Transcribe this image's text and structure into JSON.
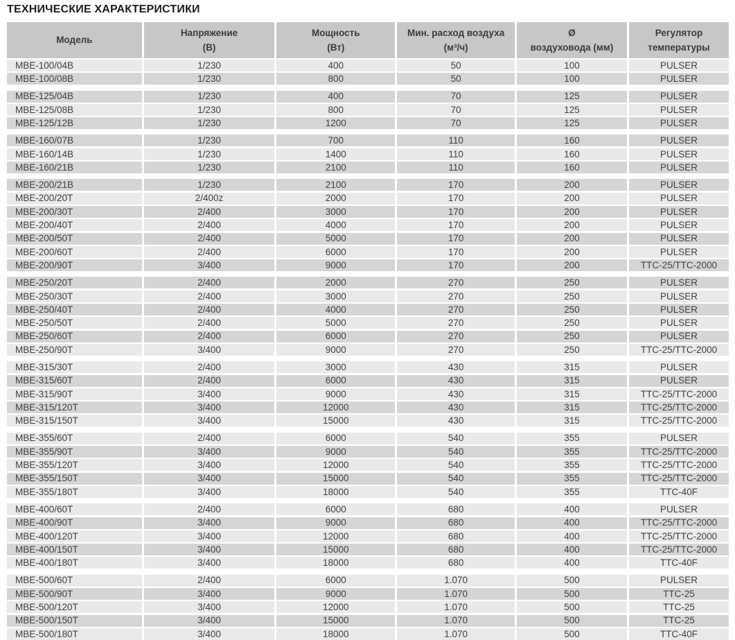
{
  "page_title": "ТЕХНИЧЕСКИЕ ХАРАКТЕРИСТИКИ",
  "colors": {
    "header_bg": "#c7c7c7",
    "row_light": "#e9e9e9",
    "row_dark": "#d5d5d5",
    "text": "#404040",
    "title_text": "#1d1d1b"
  },
  "table": {
    "columns": [
      {
        "id": "model",
        "label_line1": "Модель",
        "label_line2": ""
      },
      {
        "id": "voltage",
        "label_line1": "Напряжение",
        "label_line2": "(В)"
      },
      {
        "id": "power",
        "label_line1": "Мощность",
        "label_line2": "(Вт)"
      },
      {
        "id": "airflow",
        "label_line1": "Мин. расход воздуха",
        "label_line2": "(м³/ч)"
      },
      {
        "id": "duct-diameter",
        "label_line1": "Ø",
        "label_line2": "воздуховода (мм)"
      },
      {
        "id": "temp-regulator",
        "label_line1": "Регулятор",
        "label_line2": "температуры"
      }
    ],
    "groups": [
      {
        "series": "MBE-100",
        "rows": [
          [
            "MBE-100/04B",
            "1/230",
            "400",
            "50",
            "100",
            "PULSER"
          ],
          [
            "MBE-100/08B",
            "1/230",
            "800",
            "50",
            "100",
            "PULSER"
          ]
        ]
      },
      {
        "series": "MBE-125",
        "rows": [
          [
            "MBE-125/04B",
            "1/230",
            "400",
            "70",
            "125",
            "PULSER"
          ],
          [
            "MBE-125/08B",
            "1/230",
            "800",
            "70",
            "125",
            "PULSER"
          ],
          [
            "MBE-125/12B",
            "1/230",
            "1200",
            "70",
            "125",
            "PULSER"
          ]
        ]
      },
      {
        "series": "MBE-160",
        "rows": [
          [
            "MBE-160/07B",
            "1/230",
            "700",
            "110",
            "160",
            "PULSER"
          ],
          [
            "MBE-160/14B",
            "1/230",
            "1400",
            "110",
            "160",
            "PULSER"
          ],
          [
            "MBE-160/21B",
            "1/230",
            "2100",
            "110",
            "160",
            "PULSER"
          ]
        ]
      },
      {
        "series": "MBE-200",
        "rows": [
          [
            "MBE-200/21B",
            "1/230",
            "2100",
            "170",
            "200",
            "PULSER"
          ],
          [
            "MBE-200/20T",
            "2/400z",
            "2000",
            "170",
            "200",
            "PULSER"
          ],
          [
            "MBE-200/30T",
            "2/400",
            "3000",
            "170",
            "200",
            "PULSER"
          ],
          [
            "MBE-200/40T",
            "2/400",
            "4000",
            "170",
            "200",
            "PULSER"
          ],
          [
            "MBE-200/50T",
            "2/400",
            "5000",
            "170",
            "200",
            "PULSER"
          ],
          [
            "MBE-200/60T",
            "2/400",
            "6000",
            "170",
            "200",
            "PULSER"
          ],
          [
            "MBE-200/90T",
            "3/400",
            "9000",
            "170",
            "200",
            "TTC-25/TTC-2000"
          ]
        ]
      },
      {
        "series": "MBE-250",
        "rows": [
          [
            "MBE-250/20T",
            "2/400",
            "2000",
            "270",
            "250",
            "PULSER"
          ],
          [
            "MBE-250/30T",
            "2/400",
            "3000",
            "270",
            "250",
            "PULSER"
          ],
          [
            "MBE-250/40T",
            "2/400",
            "4000",
            "270",
            "250",
            "PULSER"
          ],
          [
            "MBE-250/50T",
            "2/400",
            "5000",
            "270",
            "250",
            "PULSER"
          ],
          [
            "MBE-250/60T",
            "2/400",
            "6000",
            "270",
            "250",
            "PULSER"
          ],
          [
            "MBE-250/90T",
            "3/400",
            "9000",
            "270",
            "250",
            "TTC-25/TTC-2000"
          ]
        ]
      },
      {
        "series": "MBE-315",
        "rows": [
          [
            "MBE-315/30T",
            "2/400",
            "3000",
            "430",
            "315",
            "PULSER"
          ],
          [
            "MBE-315/60T",
            "2/400",
            "6000",
            "430",
            "315",
            "PULSER"
          ],
          [
            "MBE-315/90T",
            "3/400",
            "9000",
            "430",
            "315",
            "TTC-25/TTC-2000"
          ],
          [
            "MBE-315/120T",
            "3/400",
            "12000",
            "430",
            "315",
            "TTC-25/TTC-2000"
          ],
          [
            "MBE-315/150T",
            "3/400",
            "15000",
            "430",
            "315",
            "TTC-25/TTC-2000"
          ]
        ]
      },
      {
        "series": "MBE-355",
        "rows": [
          [
            "MBE-355/60T",
            "2/400",
            "6000",
            "540",
            "355",
            "PULSER"
          ],
          [
            "MBE-355/90T",
            "3/400",
            "9000",
            "540",
            "355",
            "TTC-25/TTC-2000"
          ],
          [
            "MBE-355/120T",
            "3/400",
            "12000",
            "540",
            "355",
            "TTC-25/TTC-2000"
          ],
          [
            "MBE-355/150T",
            "3/400",
            "15000",
            "540",
            "355",
            "TTC-25/TTC-2000"
          ],
          [
            "MBE-355/180T",
            "3/400",
            "18000",
            "540",
            "355",
            "TTC-40F"
          ]
        ]
      },
      {
        "series": "MBE-400",
        "rows": [
          [
            "MBE-400/60T",
            "2/400",
            "6000",
            "680",
            "400",
            "PULSER"
          ],
          [
            "MBE-400/90T",
            "3/400",
            "9000",
            "680",
            "400",
            "TTC-25/TTC-2000"
          ],
          [
            "MBE-400/120T",
            "3/400",
            "12000",
            "680",
            "400",
            "TTC-25/TTC-2000"
          ],
          [
            "MBE-400/150T",
            "3/400",
            "15000",
            "680",
            "400",
            "TTC-25/TTC-2000"
          ],
          [
            "MBE-400/180T",
            "3/400",
            "18000",
            "680",
            "400",
            "TTC-40F"
          ]
        ]
      },
      {
        "series": "MBE-500",
        "rows": [
          [
            "MBE-500/60T",
            "2/400",
            "6000",
            "1.070",
            "500",
            "PULSER"
          ],
          [
            "MBE-500/90T",
            "3/400",
            "9000",
            "1.070",
            "500",
            "TTC-25"
          ],
          [
            "MBE-500/120T",
            "3/400",
            "12000",
            "1.070",
            "500",
            "TTC-25"
          ],
          [
            "MBE-500/150T",
            "3/400",
            "15000",
            "1.070",
            "500",
            "TTC-25"
          ],
          [
            "MBE-500/180T",
            "3/400",
            "18000",
            "1.070",
            "500",
            "TTC-40F"
          ]
        ]
      }
    ]
  }
}
